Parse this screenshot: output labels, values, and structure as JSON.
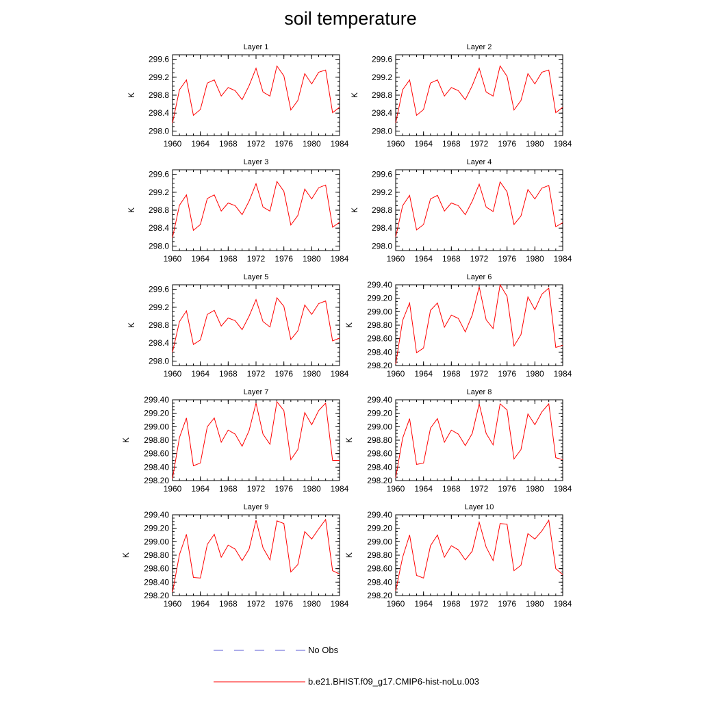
{
  "title": "soil temperature",
  "legend": [
    {
      "label": "No Obs",
      "color": "#5b5bd6",
      "style": "dashed"
    },
    {
      "label": "b.e21.BHIST.f09_g17.CMIP6-hist-noLu.003",
      "color": "#ff0000",
      "style": "solid"
    }
  ],
  "chart_data": [
    {
      "type": "line",
      "title": "Layer 1",
      "ylabel": "K",
      "xlim": [
        1960,
        1984
      ],
      "ylim": [
        297.9,
        299.7
      ],
      "xticks": [
        1960,
        1964,
        1968,
        1972,
        1976,
        1980,
        1984
      ],
      "yticks": [
        "298.0",
        "298.4",
        "298.8",
        "299.2",
        "299.6"
      ],
      "x": [
        1960,
        1961,
        1962,
        1963,
        1964,
        1965,
        1966,
        1967,
        1968,
        1969,
        1970,
        1971,
        1972,
        1973,
        1974,
        1975,
        1976,
        1977,
        1978,
        1979,
        1980,
        1981,
        1982,
        1983,
        1984
      ],
      "series": [
        {
          "name": "b.e21.BHIST.f09_g17.CMIP6-hist-noLu.003",
          "color": "#ff0000",
          "values": [
            298.18,
            298.92,
            299.14,
            298.35,
            298.48,
            299.07,
            299.14,
            298.78,
            298.97,
            298.9,
            298.7,
            299.01,
            299.4,
            298.87,
            298.78,
            299.45,
            299.23,
            298.47,
            298.68,
            299.28,
            299.05,
            299.31,
            299.36,
            298.41,
            298.53
          ]
        }
      ]
    },
    {
      "type": "line",
      "title": "Layer 2",
      "ylabel": "K",
      "xlim": [
        1960,
        1984
      ],
      "ylim": [
        297.9,
        299.7
      ],
      "xticks": [
        1960,
        1964,
        1968,
        1972,
        1976,
        1980,
        1984
      ],
      "yticks": [
        "298.0",
        "298.4",
        "298.8",
        "299.2",
        "299.6"
      ],
      "x": [
        1960,
        1961,
        1962,
        1963,
        1964,
        1965,
        1966,
        1967,
        1968,
        1969,
        1970,
        1971,
        1972,
        1973,
        1974,
        1975,
        1976,
        1977,
        1978,
        1979,
        1980,
        1981,
        1982,
        1983,
        1984
      ],
      "series": [
        {
          "name": "b.e21.BHIST.f09_g17.CMIP6-hist-noLu.003",
          "color": "#ff0000",
          "values": [
            298.18,
            298.92,
            299.14,
            298.35,
            298.48,
            299.07,
            299.14,
            298.78,
            298.97,
            298.9,
            298.7,
            299.01,
            299.4,
            298.87,
            298.78,
            299.45,
            299.22,
            298.47,
            298.68,
            299.28,
            299.05,
            299.31,
            299.36,
            298.41,
            298.53
          ]
        }
      ]
    },
    {
      "type": "line",
      "title": "Layer 3",
      "ylabel": "K",
      "xlim": [
        1960,
        1984
      ],
      "ylim": [
        297.9,
        299.7
      ],
      "xticks": [
        1960,
        1964,
        1968,
        1972,
        1976,
        1980,
        1984
      ],
      "yticks": [
        "298.0",
        "298.4",
        "298.8",
        "299.2",
        "299.6"
      ],
      "x": [
        1960,
        1961,
        1962,
        1963,
        1964,
        1965,
        1966,
        1967,
        1968,
        1969,
        1970,
        1971,
        1972,
        1973,
        1974,
        1975,
        1976,
        1977,
        1978,
        1979,
        1980,
        1981,
        1982,
        1983,
        1984
      ],
      "series": [
        {
          "name": "b.e21.BHIST.f09_g17.CMIP6-hist-noLu.003",
          "color": "#ff0000",
          "values": [
            298.19,
            298.91,
            299.14,
            298.35,
            298.48,
            299.06,
            299.14,
            298.78,
            298.96,
            298.9,
            298.7,
            299.0,
            299.39,
            298.87,
            298.78,
            299.44,
            299.22,
            298.47,
            298.68,
            299.27,
            299.05,
            299.3,
            299.36,
            298.42,
            298.53
          ]
        }
      ]
    },
    {
      "type": "line",
      "title": "Layer 4",
      "ylabel": "K",
      "xlim": [
        1960,
        1984
      ],
      "ylim": [
        297.9,
        299.7
      ],
      "xticks": [
        1960,
        1964,
        1968,
        1972,
        1976,
        1980,
        1984
      ],
      "yticks": [
        "298.0",
        "298.4",
        "298.8",
        "299.2",
        "299.6"
      ],
      "x": [
        1960,
        1961,
        1962,
        1963,
        1964,
        1965,
        1966,
        1967,
        1968,
        1969,
        1970,
        1971,
        1972,
        1973,
        1974,
        1975,
        1976,
        1977,
        1978,
        1979,
        1980,
        1981,
        1982,
        1983,
        1984
      ],
      "series": [
        {
          "name": "b.e21.BHIST.f09_g17.CMIP6-hist-noLu.003",
          "color": "#ff0000",
          "values": [
            298.2,
            298.9,
            299.13,
            298.36,
            298.48,
            299.05,
            299.13,
            298.78,
            298.96,
            298.9,
            298.7,
            299.0,
            299.38,
            298.87,
            298.77,
            299.43,
            299.21,
            298.48,
            298.67,
            299.26,
            299.05,
            299.29,
            299.35,
            298.43,
            298.52
          ]
        }
      ]
    },
    {
      "type": "line",
      "title": "Layer 5",
      "ylabel": "K",
      "xlim": [
        1960,
        1984
      ],
      "ylim": [
        297.9,
        299.7
      ],
      "xticks": [
        1960,
        1964,
        1968,
        1972,
        1976,
        1980,
        1984
      ],
      "yticks": [
        "298.0",
        "298.4",
        "298.8",
        "299.2",
        "299.6"
      ],
      "x": [
        1960,
        1961,
        1962,
        1963,
        1964,
        1965,
        1966,
        1967,
        1968,
        1969,
        1970,
        1971,
        1972,
        1973,
        1974,
        1975,
        1976,
        1977,
        1978,
        1979,
        1980,
        1981,
        1982,
        1983,
        1984
      ],
      "series": [
        {
          "name": "b.e21.BHIST.f09_g17.CMIP6-hist-noLu.003",
          "color": "#ff0000",
          "values": [
            298.2,
            298.88,
            299.12,
            298.37,
            298.47,
            299.04,
            299.13,
            298.78,
            298.96,
            298.9,
            298.7,
            299.0,
            299.37,
            298.88,
            298.76,
            299.41,
            299.22,
            298.48,
            298.67,
            299.25,
            299.04,
            299.28,
            299.34,
            298.45,
            298.51
          ]
        }
      ]
    },
    {
      "type": "line",
      "title": "Layer 6",
      "ylabel": "K",
      "xlim": [
        1960,
        1984
      ],
      "ylim": [
        298.2,
        299.4
      ],
      "xticks": [
        1960,
        1964,
        1968,
        1972,
        1976,
        1980,
        1984
      ],
      "yticks": [
        "298.20",
        "298.40",
        "298.60",
        "298.80",
        "299.00",
        "299.20",
        "299.40"
      ],
      "x": [
        1960,
        1961,
        1962,
        1963,
        1964,
        1965,
        1966,
        1967,
        1968,
        1969,
        1970,
        1971,
        1972,
        1973,
        1974,
        1975,
        1976,
        1977,
        1978,
        1979,
        1980,
        1981,
        1982,
        1983,
        1984
      ],
      "series": [
        {
          "name": "b.e21.BHIST.f09_g17.CMIP6-hist-noLu.003",
          "color": "#ff0000",
          "values": [
            298.22,
            298.87,
            299.13,
            298.39,
            298.46,
            299.02,
            299.13,
            298.77,
            298.95,
            298.9,
            298.7,
            298.95,
            299.37,
            298.88,
            298.75,
            299.4,
            299.23,
            298.49,
            298.66,
            299.22,
            299.03,
            299.26,
            299.35,
            298.47,
            298.5
          ]
        }
      ]
    },
    {
      "type": "line",
      "title": "Layer 7",
      "ylabel": "K",
      "xlim": [
        1960,
        1984
      ],
      "ylim": [
        298.2,
        299.4
      ],
      "xticks": [
        1960,
        1964,
        1968,
        1972,
        1976,
        1980,
        1984
      ],
      "yticks": [
        "298.20",
        "298.40",
        "298.60",
        "298.80",
        "299.00",
        "299.20",
        "299.40"
      ],
      "x": [
        1960,
        1961,
        1962,
        1963,
        1964,
        1965,
        1966,
        1967,
        1968,
        1969,
        1970,
        1971,
        1972,
        1973,
        1974,
        1975,
        1976,
        1977,
        1978,
        1979,
        1980,
        1981,
        1982,
        1983,
        1984
      ],
      "series": [
        {
          "name": "b.e21.BHIST.f09_g17.CMIP6-hist-noLu.003",
          "color": "#ff0000",
          "values": [
            298.23,
            298.84,
            299.13,
            298.42,
            298.46,
            299.0,
            299.13,
            298.77,
            298.95,
            298.89,
            298.71,
            298.94,
            299.35,
            298.89,
            298.74,
            299.37,
            299.24,
            298.51,
            298.66,
            299.21,
            299.03,
            299.24,
            299.35,
            298.5,
            298.5
          ]
        }
      ]
    },
    {
      "type": "line",
      "title": "Layer 8",
      "ylabel": "K",
      "xlim": [
        1960,
        1984
      ],
      "ylim": [
        298.2,
        299.4
      ],
      "xticks": [
        1960,
        1964,
        1968,
        1972,
        1976,
        1980,
        1984
      ],
      "yticks": [
        "298.20",
        "298.40",
        "298.60",
        "298.80",
        "299.00",
        "299.20",
        "299.40"
      ],
      "x": [
        1960,
        1961,
        1962,
        1963,
        1964,
        1965,
        1966,
        1967,
        1968,
        1969,
        1970,
        1971,
        1972,
        1973,
        1974,
        1975,
        1976,
        1977,
        1978,
        1979,
        1980,
        1981,
        1982,
        1983,
        1984
      ],
      "series": [
        {
          "name": "b.e21.BHIST.f09_g17.CMIP6-hist-noLu.003",
          "color": "#ff0000",
          "values": [
            298.24,
            298.83,
            299.12,
            298.44,
            298.46,
            298.98,
            299.12,
            298.77,
            298.95,
            298.89,
            298.72,
            298.9,
            299.34,
            298.9,
            298.73,
            299.34,
            299.25,
            298.52,
            298.66,
            299.19,
            299.03,
            299.22,
            299.34,
            298.54,
            298.51
          ]
        }
      ]
    },
    {
      "type": "line",
      "title": "Layer 9",
      "ylabel": "K",
      "xlim": [
        1960,
        1984
      ],
      "ylim": [
        298.2,
        299.4
      ],
      "xticks": [
        1960,
        1964,
        1968,
        1972,
        1976,
        1980,
        1984
      ],
      "yticks": [
        "298.20",
        "298.40",
        "298.60",
        "298.80",
        "299.00",
        "299.20",
        "299.40"
      ],
      "x": [
        1960,
        1961,
        1962,
        1963,
        1964,
        1965,
        1966,
        1967,
        1968,
        1969,
        1970,
        1971,
        1972,
        1973,
        1974,
        1975,
        1976,
        1977,
        1978,
        1979,
        1980,
        1981,
        1982,
        1983,
        1984
      ],
      "series": [
        {
          "name": "b.e21.BHIST.f09_g17.CMIP6-hist-noLu.003",
          "color": "#ff0000",
          "values": [
            298.25,
            298.81,
            299.11,
            298.47,
            298.46,
            298.96,
            299.11,
            298.77,
            298.95,
            298.89,
            298.72,
            298.89,
            299.32,
            298.91,
            298.73,
            299.31,
            299.27,
            298.55,
            298.66,
            299.15,
            299.04,
            299.19,
            299.33,
            298.57,
            298.52
          ]
        }
      ]
    },
    {
      "type": "line",
      "title": "Layer 10",
      "ylabel": "K",
      "xlim": [
        1960,
        1984
      ],
      "ylim": [
        298.2,
        299.4
      ],
      "xticks": [
        1960,
        1964,
        1968,
        1972,
        1976,
        1980,
        1984
      ],
      "yticks": [
        "298.20",
        "298.40",
        "298.60",
        "298.80",
        "299.00",
        "299.20",
        "299.40"
      ],
      "x": [
        1960,
        1961,
        1962,
        1963,
        1964,
        1965,
        1966,
        1967,
        1968,
        1969,
        1970,
        1971,
        1972,
        1973,
        1974,
        1975,
        1976,
        1977,
        1978,
        1979,
        1980,
        1981,
        1982,
        1983,
        1984
      ],
      "series": [
        {
          "name": "b.e21.BHIST.f09_g17.CMIP6-hist-noLu.003",
          "color": "#ff0000",
          "values": [
            298.27,
            298.77,
            299.1,
            298.5,
            298.46,
            298.94,
            299.1,
            298.77,
            298.94,
            298.88,
            298.73,
            298.86,
            299.29,
            298.92,
            298.72,
            299.27,
            299.26,
            298.57,
            298.65,
            299.12,
            299.04,
            299.16,
            299.32,
            298.6,
            298.51
          ]
        }
      ]
    }
  ]
}
